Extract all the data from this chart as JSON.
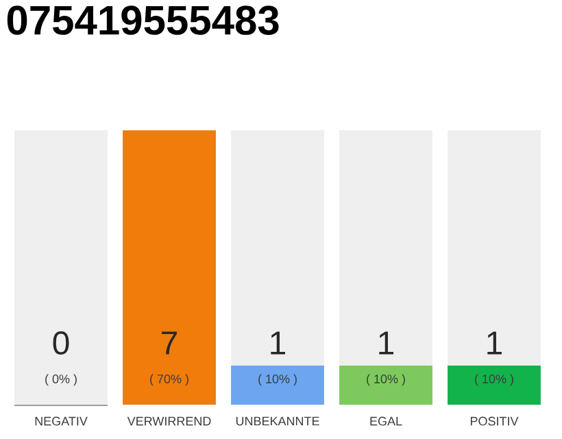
{
  "chart_data": {
    "type": "bar",
    "title": "075419555483",
    "stacked": true,
    "categories": [
      "NEGATIV",
      "VERWIRREND",
      "UNBEKANNTE",
      "EGAL",
      "POSITIV"
    ],
    "series": [
      {
        "colors": [
          "#9e9e9e",
          "#f07c0c",
          "#6ea5f0",
          "#7dc95e",
          "#12b34a"
        ],
        "values": [
          0,
          70,
          10,
          10,
          10
        ],
        "value_labels": [
          "( 0% )",
          "( 70% )",
          "( 10% )",
          "( 10% )",
          "( 10% )"
        ]
      },
      {
        "color": "#efefef",
        "values": [
          70,
          0,
          60,
          60,
          60
        ]
      }
    ],
    "annotations": [
      "0",
      "7",
      "1",
      "1",
      "1"
    ]
  }
}
